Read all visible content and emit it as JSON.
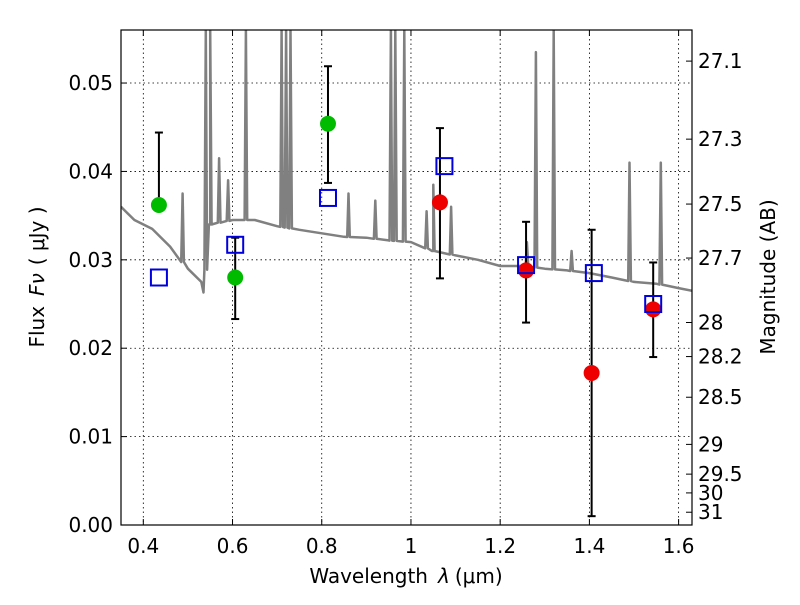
{
  "chart_data": {
    "type": "scatter",
    "xlabel": "Wavelength",
    "xlabel_symbol": "λ",
    "xlabel_unit": "(μm)",
    "ylabel": "Flux",
    "ylabel_symbol": "Fν",
    "ylabel_unit": "( μJy )",
    "y2label": "Magnitude (AB)",
    "xlim": [
      0.35,
      1.63
    ],
    "ylim": [
      0.0,
      0.056
    ],
    "grid": true,
    "x_ticks": [
      0.4,
      0.6,
      0.8,
      1.0,
      1.2,
      1.4,
      1.6
    ],
    "x_tick_labels": [
      "0.4",
      "0.6",
      "0.8",
      "1",
      "1.2",
      "1.4",
      "1.6"
    ],
    "y_ticks": [
      0.0,
      0.01,
      0.02,
      0.03,
      0.04,
      0.05
    ],
    "y_tick_labels": [
      "0.00",
      "0.01",
      "0.02",
      "0.03",
      "0.04",
      "0.05"
    ],
    "y2_ticks": [
      27.1,
      27.3,
      27.5,
      27.7,
      28,
      28.2,
      28.5,
      29,
      29.5,
      30,
      31
    ],
    "y2_tick_labels": [
      "27.1",
      "27.3",
      "27.5",
      "27.7",
      "28",
      "28.2",
      "28.5",
      "29",
      "29.5",
      "30",
      "31"
    ],
    "colors": {
      "green": "#00bb00",
      "red": "#ee0000",
      "model_box": "#0000dd",
      "spectrum": "#808080",
      "errorbar": "#000000"
    },
    "series": [
      {
        "marker": "circle",
        "color": "green",
        "x": [
          0.435,
          0.606,
          0.814
        ],
        "y": [
          0.0362,
          0.028,
          0.0454
        ],
        "yerr_low": [
          0.0362,
          0.0233,
          0.0387
        ],
        "yerr_high": [
          0.0444,
          0.0325,
          0.0519
        ]
      },
      {
        "marker": "circle",
        "color": "red",
        "x": [
          1.065,
          1.258,
          1.405,
          1.543
        ],
        "y": [
          0.0365,
          0.0288,
          0.0172,
          0.0244
        ],
        "yerr_low": [
          0.0279,
          0.0229,
          0.001,
          0.019
        ],
        "yerr_high": [
          0.0449,
          0.0343,
          0.0334,
          0.0297
        ]
      },
      {
        "marker": "open-square",
        "color": "model_box",
        "x": [
          0.435,
          0.606,
          0.814,
          1.075,
          1.258,
          1.41,
          1.543
        ],
        "y": [
          0.028,
          0.0317,
          0.037,
          0.0406,
          0.0294,
          0.0285,
          0.025
        ]
      }
    ],
    "spectrum": {
      "color": "spectrum",
      "continuum_x": [
        0.35,
        0.38,
        0.42,
        0.46,
        0.5,
        0.53,
        0.535,
        0.55,
        0.6,
        0.65,
        0.7,
        0.75,
        0.8,
        0.85,
        0.9,
        0.95,
        1.0,
        1.05,
        1.1,
        1.15,
        1.2,
        1.25,
        1.3,
        1.35,
        1.4,
        1.45,
        1.5,
        1.55,
        1.6,
        1.63
      ],
      "continuum_y": [
        0.036,
        0.0345,
        0.0335,
        0.0315,
        0.029,
        0.0275,
        0.0263,
        0.034,
        0.0345,
        0.0345,
        0.0338,
        0.0334,
        0.033,
        0.0326,
        0.0325,
        0.0322,
        0.032,
        0.031,
        0.0305,
        0.03,
        0.0293,
        0.0293,
        0.029,
        0.0288,
        0.0285,
        0.028,
        0.0275,
        0.0273,
        0.0268,
        0.0265
      ],
      "emission_lines": [
        {
          "x": 0.488,
          "peak": 0.0375
        },
        {
          "x": 0.54,
          "peak": 0.056
        },
        {
          "x": 0.55,
          "peak": 0.056
        },
        {
          "x": 0.57,
          "peak": 0.0415
        },
        {
          "x": 0.59,
          "peak": 0.039
        },
        {
          "x": 0.63,
          "peak": 0.056
        },
        {
          "x": 0.71,
          "peak": 0.056
        },
        {
          "x": 0.72,
          "peak": 0.056
        },
        {
          "x": 0.73,
          "peak": 0.056
        },
        {
          "x": 0.86,
          "peak": 0.0375
        },
        {
          "x": 0.92,
          "peak": 0.0367
        },
        {
          "x": 0.955,
          "peak": 0.056
        },
        {
          "x": 0.965,
          "peak": 0.056
        },
        {
          "x": 0.985,
          "peak": 0.056
        },
        {
          "x": 1.035,
          "peak": 0.0355
        },
        {
          "x": 1.05,
          "peak": 0.0385
        },
        {
          "x": 1.09,
          "peak": 0.036
        },
        {
          "x": 1.26,
          "peak": 0.032
        },
        {
          "x": 1.28,
          "peak": 0.0535
        },
        {
          "x": 1.32,
          "peak": 0.056
        },
        {
          "x": 1.36,
          "peak": 0.031
        },
        {
          "x": 1.49,
          "peak": 0.041
        },
        {
          "x": 1.56,
          "peak": 0.041
        }
      ]
    }
  }
}
